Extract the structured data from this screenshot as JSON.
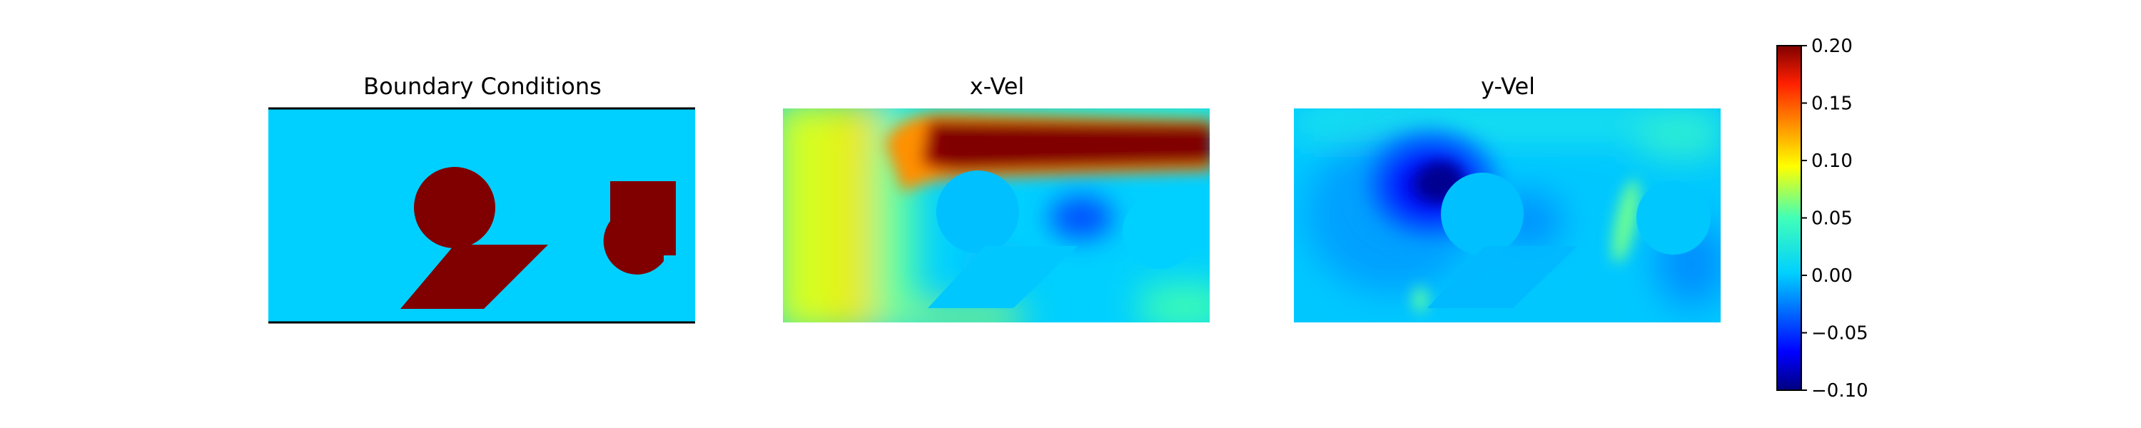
{
  "panels": [
    {
      "title": "Boundary Conditions"
    },
    {
      "title": "x-Vel"
    },
    {
      "title": "y-Vel"
    }
  ],
  "colorbar": {
    "colormap": "jet",
    "vmin": -0.1,
    "vmax": 0.2,
    "ticks": [
      "0.20",
      "0.15",
      "0.10",
      "0.05",
      "0.00",
      "−0.05",
      "−0.10"
    ]
  },
  "colors": {
    "fluid": "#00d0ff",
    "obstacle": "#800000",
    "wall": "#000000"
  },
  "chart_data": [
    {
      "type": "heatmap",
      "title": "Boundary Conditions",
      "description": "Binary mask: fluid region with three obstacles (circle, parallelogram, rounded rectangle)",
      "values": {
        "fluid": 0,
        "obstacle": 1
      }
    },
    {
      "type": "heatmap",
      "title": "x-Vel",
      "colormap": "jet",
      "range": [
        -0.1,
        0.2
      ],
      "features": {
        "top_jet": 0.2,
        "inlet_region": 0.1,
        "wake_minimum": -0.04,
        "background": 0.0
      }
    },
    {
      "type": "heatmap",
      "title": "y-Vel",
      "colormap": "jet",
      "range": [
        -0.1,
        0.2
      ],
      "features": {
        "upstream_minimum": -0.1,
        "gap_maximum": 0.07,
        "background": 0.0
      }
    }
  ]
}
